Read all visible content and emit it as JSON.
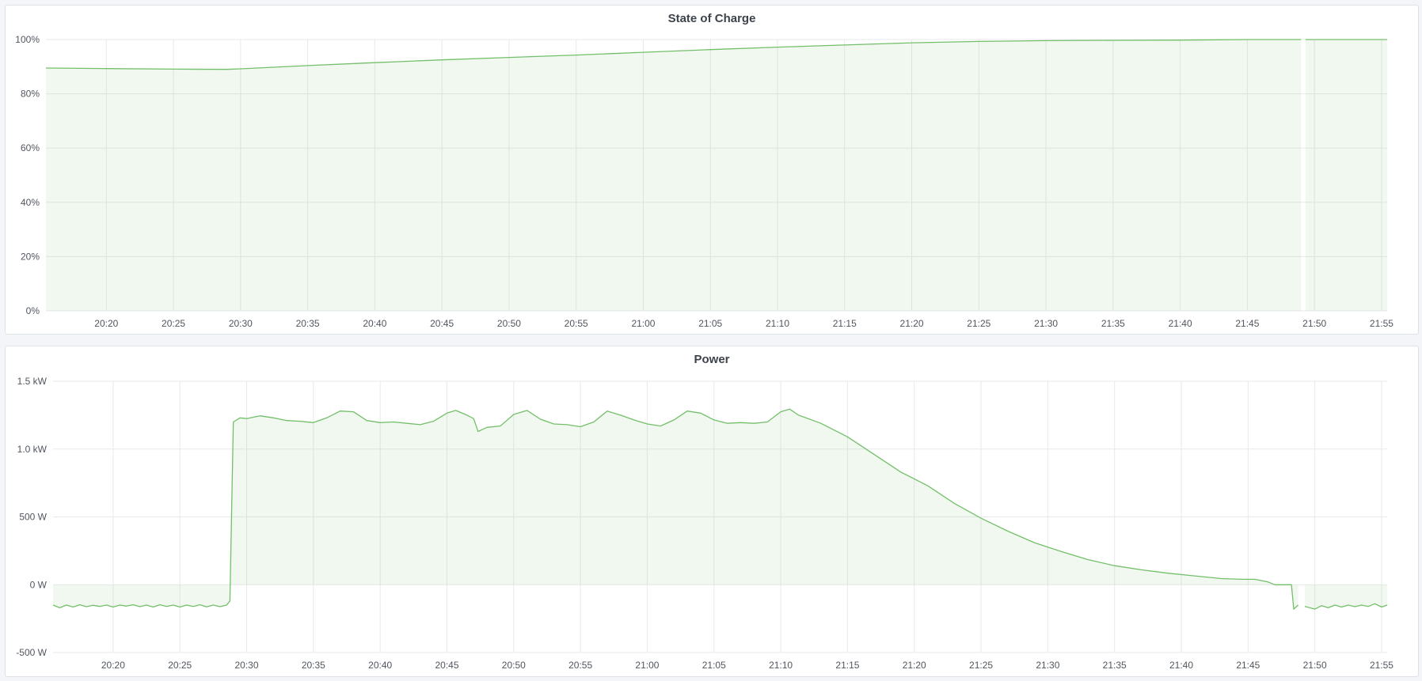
{
  "theme": {
    "line_color": "#73bf69",
    "fill_color": "rgba(115,191,105,0.1)",
    "grid_color": "#e8e9ec"
  },
  "chart_data": [
    {
      "type": "area",
      "title": "State of Charge",
      "xlim": [
        "20:15:30",
        "21:55:25"
      ],
      "ylim": [
        0,
        100
      ],
      "x_ticks": [
        "20:20",
        "20:25",
        "20:30",
        "20:35",
        "20:40",
        "20:45",
        "20:50",
        "20:55",
        "21:00",
        "21:05",
        "21:10",
        "21:15",
        "21:20",
        "21:25",
        "21:30",
        "21:35",
        "21:40",
        "21:45",
        "21:50",
        "21:55"
      ],
      "y_ticks": [
        {
          "value": 0,
          "label": "0%"
        },
        {
          "value": 20,
          "label": "20%"
        },
        {
          "value": 40,
          "label": "40%"
        },
        {
          "value": 60,
          "label": "60%"
        },
        {
          "value": 80,
          "label": "80%"
        },
        {
          "value": 100,
          "label": "100%"
        }
      ],
      "grid": true,
      "legend": "none",
      "points": [
        [
          "20:15:30",
          89.5
        ],
        [
          "20:20:00",
          89.3
        ],
        [
          "20:25:00",
          89.1
        ],
        [
          "20:29:00",
          89.0
        ],
        [
          "20:30:00",
          89.2
        ],
        [
          "20:35:00",
          90.4
        ],
        [
          "20:40:00",
          91.5
        ],
        [
          "20:45:00",
          92.5
        ],
        [
          "20:50:00",
          93.4
        ],
        [
          "20:55:00",
          94.3
        ],
        [
          "21:00:00",
          95.3
        ],
        [
          "21:05:00",
          96.3
        ],
        [
          "21:10:00",
          97.2
        ],
        [
          "21:15:00",
          98.0
        ],
        [
          "21:20:00",
          98.8
        ],
        [
          "21:25:00",
          99.3
        ],
        [
          "21:30:00",
          99.6
        ],
        [
          "21:35:00",
          99.7
        ],
        [
          "21:40:00",
          99.8
        ],
        [
          "21:45:00",
          100
        ],
        [
          "21:49:00",
          100
        ],
        [
          "21:49:05",
          null
        ],
        [
          "21:49:15",
          null
        ],
        [
          "21:49:20",
          100
        ],
        [
          "21:55:25",
          100
        ]
      ]
    },
    {
      "type": "area",
      "title": "Power",
      "xlim": [
        "20:15:30",
        "21:55:25"
      ],
      "ylim": [
        -500,
        1500
      ],
      "x_ticks": [
        "20:20",
        "20:25",
        "20:30",
        "20:35",
        "20:40",
        "20:45",
        "20:50",
        "20:55",
        "21:00",
        "21:05",
        "21:10",
        "21:15",
        "21:20",
        "21:25",
        "21:30",
        "21:35",
        "21:40",
        "21:45",
        "21:50",
        "21:55"
      ],
      "y_ticks": [
        {
          "value": -500,
          "label": "-500 W"
        },
        {
          "value": 0,
          "label": "0 W"
        },
        {
          "value": 500,
          "label": "500 W"
        },
        {
          "value": 1000,
          "label": "1.0 kW"
        },
        {
          "value": 1500,
          "label": "1.5 kW"
        }
      ],
      "grid": true,
      "legend": "none",
      "points": [
        [
          "20:15:30",
          -150
        ],
        [
          "20:16:00",
          -170
        ],
        [
          "20:16:30",
          -150
        ],
        [
          "20:17:00",
          -165
        ],
        [
          "20:17:30",
          -148
        ],
        [
          "20:18:00",
          -162
        ],
        [
          "20:18:30",
          -152
        ],
        [
          "20:19:00",
          -160
        ],
        [
          "20:19:30",
          -150
        ],
        [
          "20:20:00",
          -165
        ],
        [
          "20:20:30",
          -150
        ],
        [
          "20:21:00",
          -158
        ],
        [
          "20:21:30",
          -148
        ],
        [
          "20:22:00",
          -162
        ],
        [
          "20:22:30",
          -150
        ],
        [
          "20:23:00",
          -165
        ],
        [
          "20:23:30",
          -148
        ],
        [
          "20:24:00",
          -160
        ],
        [
          "20:24:30",
          -150
        ],
        [
          "20:25:00",
          -165
        ],
        [
          "20:25:30",
          -150
        ],
        [
          "20:26:00",
          -160
        ],
        [
          "20:26:30",
          -148
        ],
        [
          "20:27:00",
          -163
        ],
        [
          "20:27:30",
          -150
        ],
        [
          "20:28:00",
          -162
        ],
        [
          "20:28:30",
          -150
        ],
        [
          "20:28:45",
          -120
        ],
        [
          "20:29:00",
          1200
        ],
        [
          "20:29:30",
          1230
        ],
        [
          "20:30:00",
          1225
        ],
        [
          "20:31:00",
          1245
        ],
        [
          "20:32:00",
          1230
        ],
        [
          "20:33:00",
          1210
        ],
        [
          "20:34:00",
          1205
        ],
        [
          "20:35:00",
          1195
        ],
        [
          "20:36:00",
          1230
        ],
        [
          "20:37:00",
          1280
        ],
        [
          "20:38:00",
          1275
        ],
        [
          "20:39:00",
          1210
        ],
        [
          "20:40:00",
          1195
        ],
        [
          "20:41:00",
          1200
        ],
        [
          "20:42:00",
          1190
        ],
        [
          "20:43:00",
          1180
        ],
        [
          "20:44:00",
          1205
        ],
        [
          "20:45:00",
          1265
        ],
        [
          "20:45:40",
          1285
        ],
        [
          "20:46:30",
          1250
        ],
        [
          "20:47:00",
          1225
        ],
        [
          "20:47:20",
          1130
        ],
        [
          "20:48:00",
          1160
        ],
        [
          "20:49:00",
          1170
        ],
        [
          "20:50:00",
          1255
        ],
        [
          "20:51:00",
          1285
        ],
        [
          "20:52:00",
          1220
        ],
        [
          "20:53:00",
          1185
        ],
        [
          "20:54:00",
          1180
        ],
        [
          "20:55:00",
          1165
        ],
        [
          "20:56:00",
          1200
        ],
        [
          "20:57:00",
          1280
        ],
        [
          "20:58:00",
          1250
        ],
        [
          "20:59:00",
          1215
        ],
        [
          "21:00:00",
          1185
        ],
        [
          "21:01:00",
          1170
        ],
        [
          "21:02:00",
          1215
        ],
        [
          "21:03:00",
          1280
        ],
        [
          "21:04:00",
          1265
        ],
        [
          "21:05:00",
          1215
        ],
        [
          "21:06:00",
          1190
        ],
        [
          "21:07:00",
          1195
        ],
        [
          "21:08:00",
          1190
        ],
        [
          "21:09:00",
          1200
        ],
        [
          "21:10:00",
          1275
        ],
        [
          "21:10:40",
          1295
        ],
        [
          "21:11:20",
          1250
        ],
        [
          "21:13:00",
          1190
        ],
        [
          "21:15:00",
          1090
        ],
        [
          "21:17:00",
          960
        ],
        [
          "21:19:00",
          830
        ],
        [
          "21:21:00",
          730
        ],
        [
          "21:23:00",
          600
        ],
        [
          "21:25:00",
          490
        ],
        [
          "21:27:00",
          395
        ],
        [
          "21:29:00",
          310
        ],
        [
          "21:31:00",
          245
        ],
        [
          "21:33:00",
          185
        ],
        [
          "21:35:00",
          140
        ],
        [
          "21:37:00",
          110
        ],
        [
          "21:39:00",
          85
        ],
        [
          "21:41:00",
          65
        ],
        [
          "21:43:00",
          45
        ],
        [
          "21:44:30",
          40
        ],
        [
          "21:45:30",
          40
        ],
        [
          "21:46:30",
          20
        ],
        [
          "21:47:00",
          0
        ],
        [
          "21:48:15",
          0
        ],
        [
          "21:48:25",
          -180
        ],
        [
          "21:48:45",
          -150
        ],
        [
          "21:49:00",
          null
        ],
        [
          "21:49:10",
          null
        ],
        [
          "21:49:15",
          -160
        ],
        [
          "21:50:00",
          -180
        ],
        [
          "21:50:30",
          -155
        ],
        [
          "21:51:00",
          -170
        ],
        [
          "21:51:30",
          -150
        ],
        [
          "21:52:00",
          -165
        ],
        [
          "21:52:30",
          -150
        ],
        [
          "21:53:00",
          -162
        ],
        [
          "21:53:30",
          -150
        ],
        [
          "21:54:00",
          -160
        ],
        [
          "21:54:30",
          -140
        ],
        [
          "21:55:00",
          -165
        ],
        [
          "21:55:25",
          -150
        ]
      ]
    }
  ]
}
